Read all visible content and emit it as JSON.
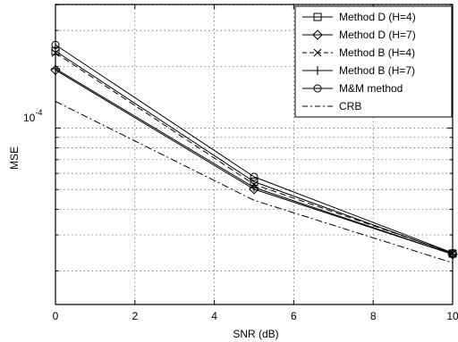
{
  "chart_data": {
    "type": "line",
    "xlabel": "SNR (dB)",
    "ylabel": "MSE",
    "x_ticks": [
      0,
      2,
      4,
      6,
      8,
      10
    ],
    "x_tick_labels": [
      "0",
      "2",
      "4",
      "6",
      "8",
      "10"
    ],
    "y_scale": "log",
    "y_tick_label": "10",
    "y_tick_exponent": "-4",
    "y_tick_value": 0.0001,
    "xlim": [
      0,
      10
    ],
    "ylim": [
      1.37e-05,
      0.000402
    ],
    "grid": true,
    "legend_position": "top-right",
    "x": [
      0,
      5,
      10
    ],
    "series": [
      {
        "name": "Method D (H=4)",
        "marker": "square",
        "line_style": "solid",
        "values": [
          0.000238,
          5.46e-05,
          2.43e-05
        ]
      },
      {
        "name": "Method D (H=7)",
        "marker": "diamond",
        "line_style": "solid",
        "values": [
          0.000192,
          5.02e-05,
          2.41e-05
        ]
      },
      {
        "name": "Method B (H=4)",
        "marker": "x",
        "line_style": "dashed",
        "values": [
          0.000233,
          5.3e-05,
          2.44e-05
        ]
      },
      {
        "name": "Method B (H=7)",
        "marker": "plus",
        "line_style": "solid",
        "values": [
          0.000195,
          5.12e-05,
          2.41e-05
        ]
      },
      {
        "name": "M&M method",
        "marker": "circle",
        "line_style": "solid",
        "values": [
          0.000255,
          5.77e-05,
          2.45e-05
        ]
      },
      {
        "name": "CRB",
        "marker": "none",
        "line_style": "dashdot",
        "values": [
          0.000135,
          4.43e-05,
          2.19e-05
        ]
      }
    ]
  }
}
